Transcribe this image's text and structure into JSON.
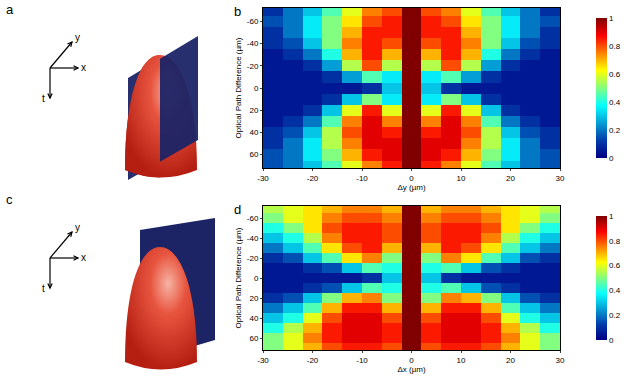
{
  "illustrations": [
    {
      "label": "a",
      "axes": [
        "x",
        "y",
        "t"
      ]
    },
    {
      "label": "c",
      "axes": [
        "x",
        "y",
        "t"
      ]
    }
  ],
  "chart_data": [
    {
      "type": "heatmap",
      "label": "b",
      "color": "Jet",
      "x_label": "Δy (µm)",
      "y_label": "Optical Path Difference (µm)",
      "xlim": [
        -30,
        30
      ],
      "ylim": [
        -72,
        72
      ],
      "xticks": [
        -30,
        -20,
        -10,
        0,
        10,
        20,
        30
      ],
      "yticks": [
        -60,
        -40,
        -20,
        0,
        20,
        40,
        60
      ],
      "colorbar_range": [
        0,
        1
      ],
      "colorbar_ticks": [
        0,
        0.2,
        0.4,
        0.6,
        0.8,
        1
      ],
      "x": [
        -28,
        -24,
        -20,
        -16,
        -12,
        -8,
        -4,
        0,
        4,
        8,
        12,
        16,
        20,
        24,
        28
      ],
      "y": [
        -70,
        -60,
        -50,
        -40,
        -30,
        -20,
        -10,
        0,
        10,
        20,
        30,
        40,
        50,
        60,
        70
      ],
      "z": [
        [
          0.1,
          0.2,
          0.3,
          0.45,
          0.6,
          0.75,
          0.8,
          1,
          0.8,
          0.75,
          0.6,
          0.45,
          0.3,
          0.2,
          0.1
        ],
        [
          0.15,
          0.2,
          0.35,
          0.5,
          0.65,
          0.8,
          0.85,
          1,
          0.85,
          0.8,
          0.65,
          0.5,
          0.35,
          0.2,
          0.15
        ],
        [
          0.1,
          0.2,
          0.35,
          0.5,
          0.7,
          0.85,
          0.85,
          1,
          0.85,
          0.85,
          0.7,
          0.5,
          0.35,
          0.2,
          0.1
        ],
        [
          0.1,
          0.15,
          0.3,
          0.5,
          0.75,
          0.85,
          0.8,
          1,
          0.8,
          0.85,
          0.75,
          0.5,
          0.3,
          0.15,
          0.1
        ],
        [
          0.05,
          0.1,
          0.2,
          0.4,
          0.7,
          0.85,
          0.7,
          1,
          0.7,
          0.85,
          0.7,
          0.4,
          0.2,
          0.1,
          0.05
        ],
        [
          0.05,
          0.05,
          0.1,
          0.25,
          0.55,
          0.8,
          0.55,
          1,
          0.55,
          0.8,
          0.55,
          0.25,
          0.1,
          0.05,
          0.05
        ],
        [
          0.05,
          0.05,
          0.05,
          0.1,
          0.25,
          0.45,
          0.35,
          1,
          0.35,
          0.45,
          0.25,
          0.1,
          0.05,
          0.05,
          0.05
        ],
        [
          0.05,
          0.05,
          0.05,
          0.05,
          0.05,
          0.1,
          0.3,
          1,
          0.3,
          0.1,
          0.05,
          0.05,
          0.05,
          0.05,
          0.05
        ],
        [
          0.05,
          0.05,
          0.05,
          0.1,
          0.3,
          0.5,
          0.35,
          1,
          0.35,
          0.5,
          0.3,
          0.1,
          0.05,
          0.05,
          0.05
        ],
        [
          0.05,
          0.05,
          0.1,
          0.3,
          0.6,
          0.85,
          0.6,
          1,
          0.6,
          0.85,
          0.6,
          0.3,
          0.1,
          0.05,
          0.05
        ],
        [
          0.05,
          0.1,
          0.2,
          0.45,
          0.75,
          0.9,
          0.75,
          1,
          0.75,
          0.9,
          0.75,
          0.45,
          0.2,
          0.1,
          0.05
        ],
        [
          0.1,
          0.15,
          0.3,
          0.55,
          0.8,
          0.9,
          0.85,
          1,
          0.85,
          0.9,
          0.8,
          0.55,
          0.3,
          0.15,
          0.1
        ],
        [
          0.1,
          0.2,
          0.35,
          0.55,
          0.75,
          0.9,
          0.9,
          1,
          0.9,
          0.9,
          0.75,
          0.55,
          0.35,
          0.2,
          0.1
        ],
        [
          0.15,
          0.2,
          0.35,
          0.5,
          0.7,
          0.85,
          0.9,
          1,
          0.9,
          0.85,
          0.7,
          0.5,
          0.35,
          0.2,
          0.15
        ],
        [
          0.15,
          0.2,
          0.3,
          0.45,
          0.6,
          0.75,
          0.85,
          1,
          0.85,
          0.75,
          0.6,
          0.45,
          0.3,
          0.2,
          0.15
        ]
      ]
    },
    {
      "type": "heatmap",
      "label": "d",
      "color": "Jet",
      "x_label": "Δx (µm)",
      "y_label": "Optical Path Difference (µm)",
      "xlim": [
        -30,
        30
      ],
      "ylim": [
        -72,
        72
      ],
      "xticks": [
        -30,
        -20,
        -10,
        0,
        10,
        20,
        30
      ],
      "yticks": [
        -60,
        -40,
        -20,
        0,
        20,
        40,
        60
      ],
      "colorbar_range": [
        0,
        1
      ],
      "colorbar_ticks": [
        0,
        0.2,
        0.4,
        0.6,
        0.8,
        1
      ],
      "x": [
        -28,
        -24,
        -20,
        -16,
        -12,
        -8,
        -4,
        0,
        4,
        8,
        12,
        16,
        20,
        24,
        28
      ],
      "y": [
        -70,
        -60,
        -50,
        -40,
        -30,
        -20,
        -10,
        0,
        10,
        20,
        30,
        40,
        50,
        60,
        70
      ],
      "z": [
        [
          0.55,
          0.6,
          0.65,
          0.7,
          0.75,
          0.75,
          0.7,
          1,
          0.7,
          0.75,
          0.75,
          0.7,
          0.65,
          0.6,
          0.55
        ],
        [
          0.5,
          0.6,
          0.65,
          0.75,
          0.8,
          0.8,
          0.75,
          1,
          0.75,
          0.8,
          0.8,
          0.75,
          0.65,
          0.6,
          0.5
        ],
        [
          0.4,
          0.5,
          0.65,
          0.8,
          0.85,
          0.85,
          0.8,
          1,
          0.8,
          0.85,
          0.85,
          0.8,
          0.65,
          0.5,
          0.4
        ],
        [
          0.3,
          0.4,
          0.55,
          0.75,
          0.85,
          0.85,
          0.8,
          1,
          0.8,
          0.85,
          0.85,
          0.75,
          0.55,
          0.4,
          0.3
        ],
        [
          0.2,
          0.3,
          0.45,
          0.65,
          0.8,
          0.85,
          0.7,
          1,
          0.7,
          0.85,
          0.8,
          0.65,
          0.45,
          0.3,
          0.2
        ],
        [
          0.1,
          0.15,
          0.3,
          0.45,
          0.65,
          0.75,
          0.5,
          1,
          0.5,
          0.75,
          0.65,
          0.45,
          0.3,
          0.15,
          0.1
        ],
        [
          0.05,
          0.05,
          0.1,
          0.15,
          0.3,
          0.45,
          0.4,
          1,
          0.4,
          0.45,
          0.3,
          0.15,
          0.1,
          0.05,
          0.05
        ],
        [
          0.05,
          0.05,
          0.05,
          0.05,
          0.05,
          0.1,
          0.3,
          1,
          0.3,
          0.1,
          0.05,
          0.05,
          0.05,
          0.05,
          0.05
        ],
        [
          0.05,
          0.05,
          0.1,
          0.15,
          0.3,
          0.45,
          0.4,
          1,
          0.4,
          0.45,
          0.3,
          0.15,
          0.1,
          0.05,
          0.05
        ],
        [
          0.1,
          0.15,
          0.3,
          0.5,
          0.7,
          0.75,
          0.5,
          1,
          0.5,
          0.75,
          0.7,
          0.5,
          0.3,
          0.15,
          0.1
        ],
        [
          0.2,
          0.3,
          0.45,
          0.7,
          0.85,
          0.85,
          0.7,
          1,
          0.7,
          0.85,
          0.85,
          0.7,
          0.45,
          0.3,
          0.2
        ],
        [
          0.3,
          0.4,
          0.6,
          0.8,
          0.9,
          0.9,
          0.8,
          1,
          0.8,
          0.9,
          0.9,
          0.8,
          0.6,
          0.4,
          0.3
        ],
        [
          0.4,
          0.55,
          0.7,
          0.85,
          0.9,
          0.9,
          0.85,
          1,
          0.85,
          0.9,
          0.9,
          0.85,
          0.7,
          0.55,
          0.4
        ],
        [
          0.5,
          0.6,
          0.75,
          0.85,
          0.9,
          0.9,
          0.85,
          1,
          0.85,
          0.9,
          0.9,
          0.85,
          0.75,
          0.6,
          0.5
        ],
        [
          0.5,
          0.6,
          0.7,
          0.8,
          0.85,
          0.85,
          0.8,
          1,
          0.8,
          0.85,
          0.85,
          0.8,
          0.7,
          0.6,
          0.5
        ]
      ]
    }
  ]
}
